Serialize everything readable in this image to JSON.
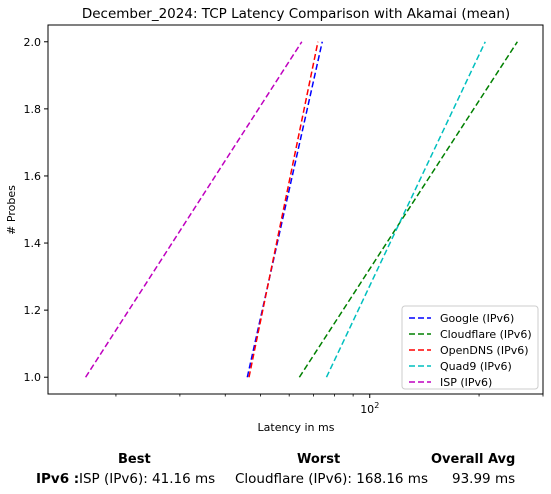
{
  "chart_data": {
    "type": "line",
    "title": "December_2024: TCP Latency Comparison with Akamai (mean)",
    "xlabel": "Latency in ms",
    "ylabel": "# Probes",
    "xscale": "log",
    "xlim": [
      13,
      300
    ],
    "ylim": [
      0.95,
      2.05
    ],
    "xticks": [
      {
        "value": 100,
        "label": "10^2"
      }
    ],
    "yticks": [
      "1.0",
      "1.2",
      "1.4",
      "1.6",
      "1.8",
      "2.0"
    ],
    "grid": false,
    "legend": "bottom-right",
    "series": [
      {
        "name": "Google (IPv6)",
        "color": "#0000ff",
        "dash": "dashed",
        "x": [
          46.0,
          74.0
        ],
        "y": [
          1,
          2
        ]
      },
      {
        "name": "Cloudflare (IPv6)",
        "color": "#008000",
        "dash": "dashed",
        "x": [
          64.0,
          255.0
        ],
        "y": [
          1,
          2
        ]
      },
      {
        "name": "OpenDNS (IPv6)",
        "color": "#ff0000",
        "dash": "dashed",
        "x": [
          46.5,
          72.0
        ],
        "y": [
          1,
          2
        ]
      },
      {
        "name": "Quad9 (IPv6)",
        "color": "#00bfbf",
        "dash": "dashed",
        "x": [
          76.0,
          208.0
        ],
        "y": [
          1,
          2
        ]
      },
      {
        "name": "ISP (IPv6)",
        "color": "#bf00bf",
        "dash": "dashed",
        "x": [
          16.5,
          65.0
        ],
        "y": [
          1,
          2
        ]
      }
    ]
  },
  "stats": {
    "best_header": "Best",
    "worst_header": "Worst",
    "avg_header": "Overall Avg",
    "row_label": "IPv6 :",
    "best": "ISP (IPv6): 41.16 ms",
    "worst": "Cloudflare (IPv6): 168.16 ms",
    "avg": "93.99 ms"
  }
}
